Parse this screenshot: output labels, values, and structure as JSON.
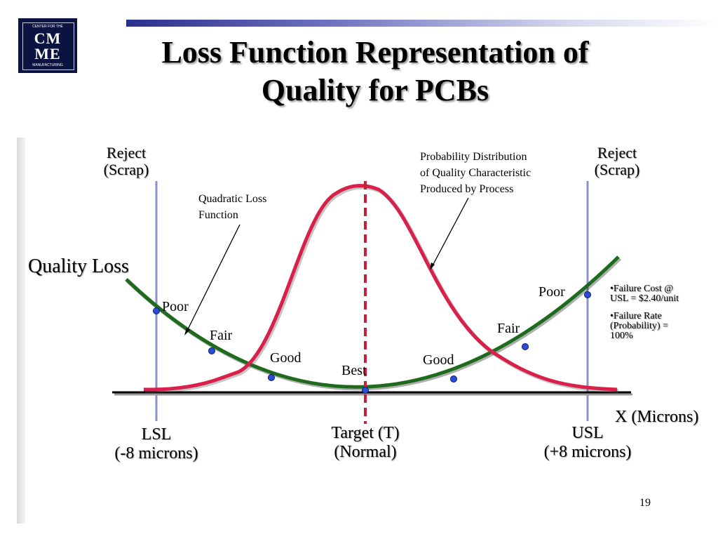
{
  "slide": {
    "title_line1": "Loss Function Representation of",
    "title_line2": "Quality for PCBs",
    "page_number": "19"
  },
  "logo": {
    "letters_line1": "CM",
    "letters_line2": "ME",
    "ring_text_top": "CENTER FOR THE",
    "ring_text_bottom": "MANUFACTURING"
  },
  "diagram": {
    "reject_left_line1": "Reject",
    "reject_left_line2": "(Scrap)",
    "reject_right_line1": "Reject",
    "reject_right_line2": "(Scrap)",
    "quality_loss_label": "Quality Loss",
    "quadratic_label_line1": "Quadratic Loss",
    "quadratic_label_line2": "Function",
    "probability_label_line1": "Probability Distribution",
    "probability_label_line2": "of Quality Characteristic",
    "probability_label_line3": "Produced by Process",
    "point_labels": {
      "poor_left": "Poor",
      "fair_left": "Fair",
      "good_left": "Good",
      "best": "Best",
      "good_right": "Good",
      "fair_right": "Fair",
      "poor_right": "Poor"
    },
    "x_axis_label": "X (Microns)",
    "lsl_line1": "LSL",
    "lsl_line2": "(-8 microns)",
    "target_line1": "Target (T)",
    "target_line2": "(Normal)",
    "usl_line1": "USL",
    "usl_line2": "(+8 microns)",
    "bullet1_line1": "•Failure Cost @",
    "bullet1_line2": "USL = $2.40/unit",
    "bullet2_line1": "•Failure Rate",
    "bullet2_line2": "(Probability) =",
    "bullet2_line3": "100%",
    "colors": {
      "loss_curve": "#1e6b1e",
      "distribution_curve": "#d8204a",
      "spec_lines": "#8a93c8",
      "target_line": "#c8203a",
      "points": "#2a4fd6",
      "axis": "#000000"
    }
  }
}
